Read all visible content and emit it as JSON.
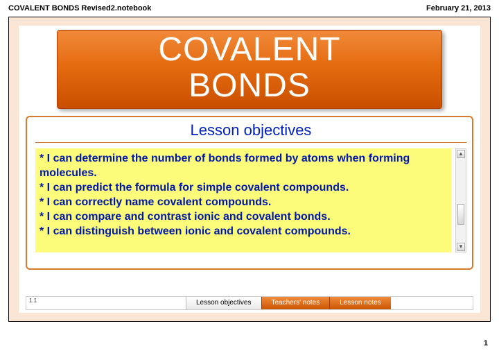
{
  "header": {
    "filename": "COVALENT BONDS Revised2.notebook",
    "date": "February 21, 2013"
  },
  "title": {
    "line1": "COVALENT",
    "line2": "BONDS",
    "bg_gradient_top": "#f08a3a",
    "bg_gradient_bottom": "#c94f00",
    "text_color": "#ffffff",
    "font_size_pt": 48
  },
  "objectives": {
    "heading": "Lesson objectives",
    "heading_color": "#0020c0",
    "border_color": "#d97a2a",
    "list_bg": "#fdfb7a",
    "list_text_color": "#0018a8",
    "items": [
      "* I can determine the number of bonds formed by atoms when forming molecules.",
      "* I can predict the formula for simple covalent compounds.",
      "* I can correctly name covalent compounds.",
      "* I can compare and contrast ionic and covalent bonds.",
      "* I can distinguish between ionic and covalent compounds."
    ]
  },
  "corner_label": "1.1",
  "tabs": {
    "items": [
      {
        "label": "Lesson objectives",
        "style": "plain"
      },
      {
        "label": "Teachers' notes",
        "style": "orange"
      },
      {
        "label": "Lesson notes",
        "style": "orange"
      }
    ]
  },
  "page_number": "1",
  "frame_bg": "#fbe6d5"
}
